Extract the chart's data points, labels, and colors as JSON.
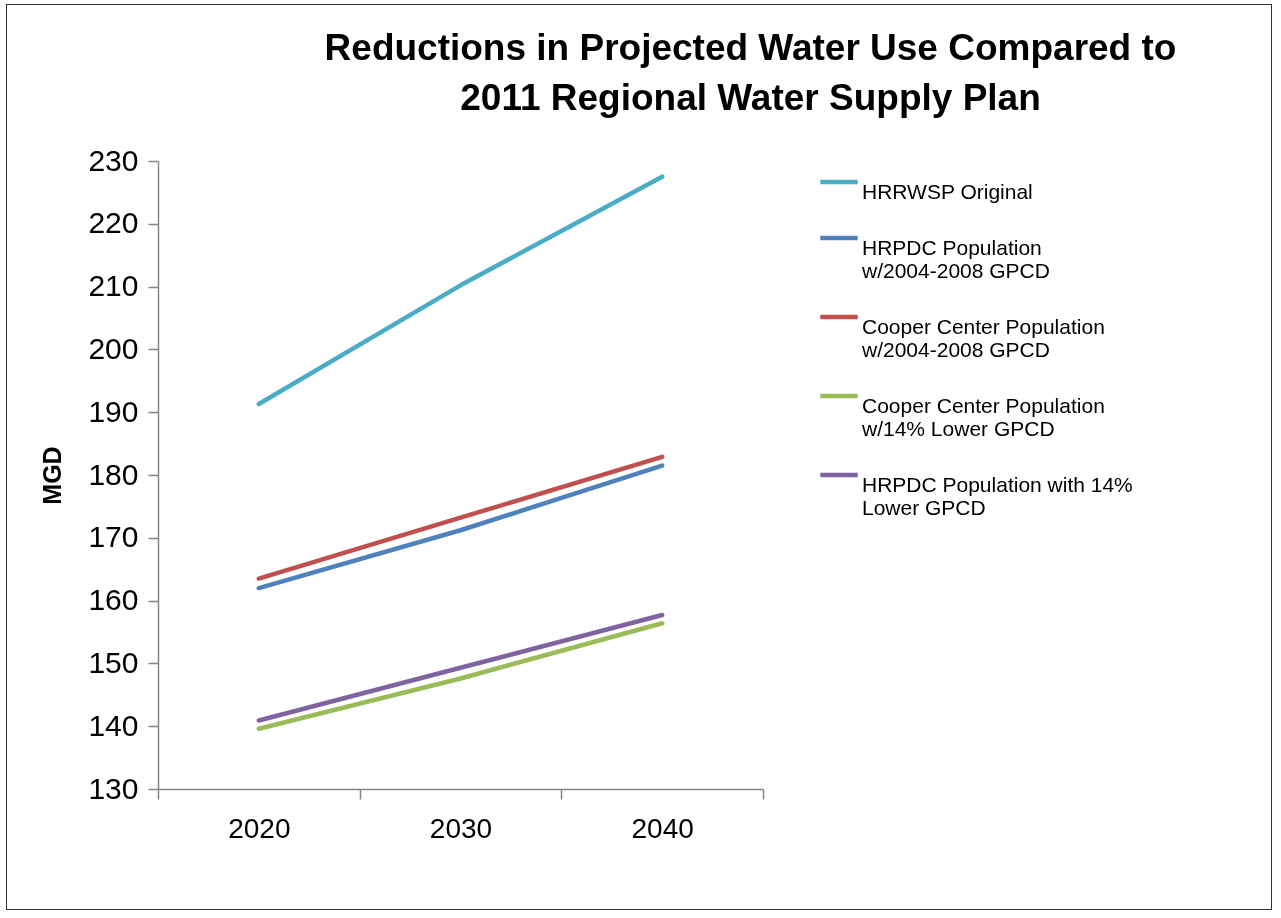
{
  "chart_data": {
    "type": "line",
    "title": [
      "Reductions in Projected Water Use Compared to",
      "2011 Regional Water Supply Plan"
    ],
    "ylabel": "MGD",
    "categories": [
      "2020",
      "2030",
      "2040"
    ],
    "ylim": [
      130,
      230
    ],
    "yticks": [
      130,
      140,
      150,
      160,
      170,
      180,
      190,
      200,
      210,
      220,
      230
    ],
    "grid": false,
    "legend": "right",
    "marker": "none",
    "line_style": "solid",
    "series": [
      {
        "name": "HRRWSP Original",
        "color": "#4bacc6",
        "values": [
          191.3,
          210.2,
          227.5
        ]
      },
      {
        "name": "HRPDC Population w/2004-2008 GPCD",
        "color": "#4f81bd",
        "values": [
          162.0,
          171.2,
          181.5
        ]
      },
      {
        "name": "Cooper Center Population w/2004-2008 GPCD",
        "color": "#c0504d",
        "values": [
          163.5,
          173.2,
          182.9
        ]
      },
      {
        "name": "Cooper Center Population w/14% Lower GPCD",
        "color": "#9bbb59",
        "values": [
          139.6,
          147.6,
          156.4
        ]
      },
      {
        "name": "HRPDC Population with 14% Lower GPCD",
        "color": "#8064a2",
        "values": [
          140.9,
          149.3,
          157.7
        ]
      }
    ]
  }
}
